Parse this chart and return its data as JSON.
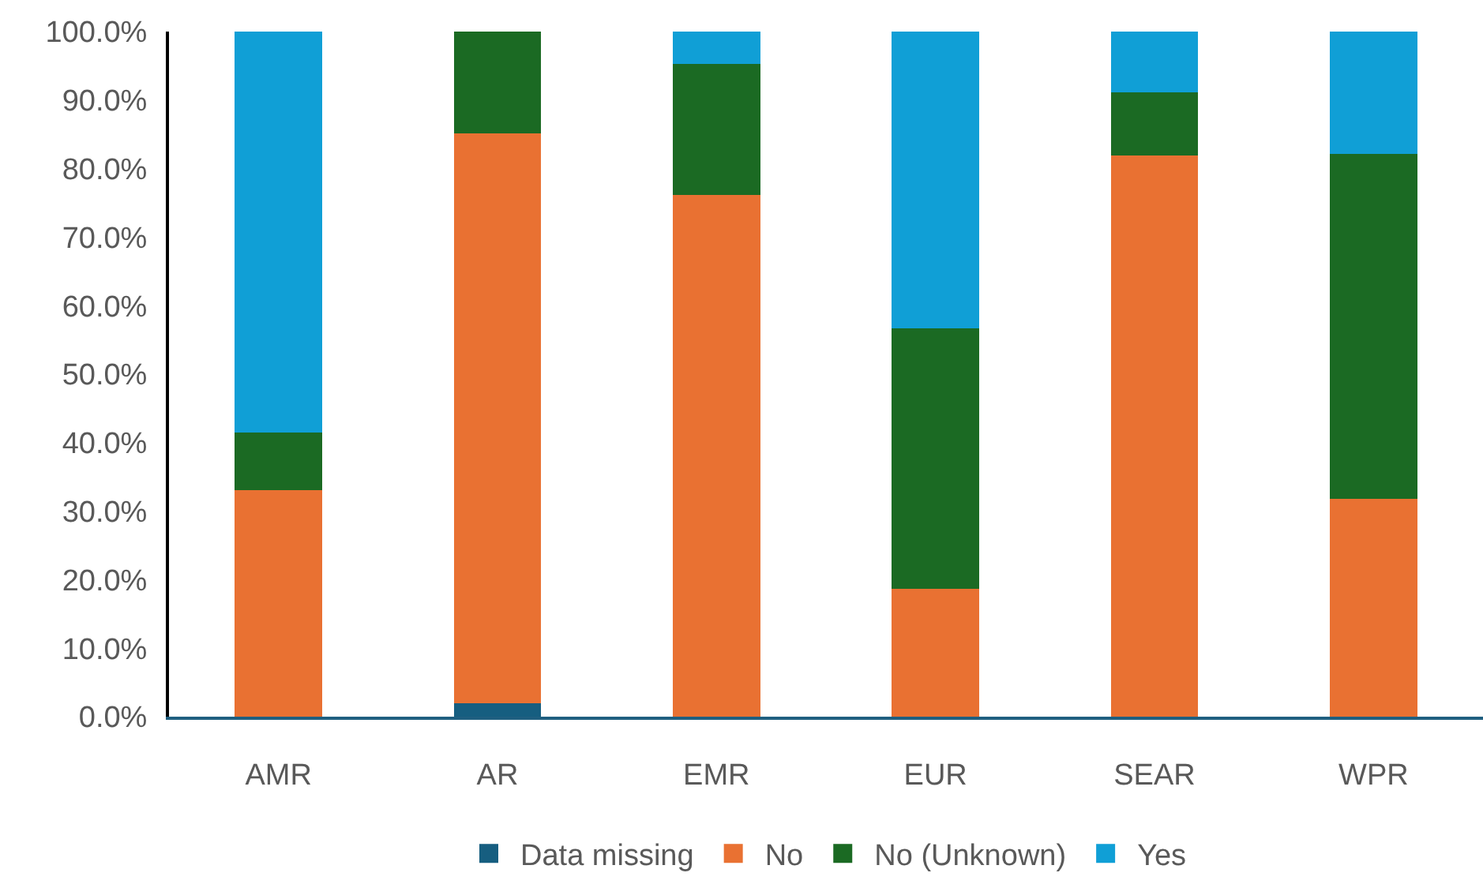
{
  "chart_data": {
    "type": "bar",
    "stacked": true,
    "categories": [
      "AMR",
      "AR",
      "EMR",
      "EUR",
      "SEAR",
      "WPR"
    ],
    "series": [
      {
        "name": "Data missing",
        "color": "#165e80",
        "values": [
          0,
          2.0,
          0,
          0,
          0,
          0
        ]
      },
      {
        "name": "No",
        "color": "#e97132",
        "values": [
          33.1,
          83.1,
          76.1,
          18.7,
          81.9,
          31.8
        ]
      },
      {
        "name": "No (Unknown)",
        "color": "#1b6a23",
        "values": [
          8.4,
          14.9,
          19.2,
          38.0,
          9.2,
          50.3
        ]
      },
      {
        "name": "Yes",
        "color": "#109fd6",
        "values": [
          58.5,
          0,
          4.7,
          43.3,
          8.9,
          17.9
        ]
      }
    ],
    "ylim": [
      0,
      100
    ],
    "yticks": [
      {
        "value": 0,
        "label": "0.0%"
      },
      {
        "value": 10,
        "label": "10.0%"
      },
      {
        "value": 20,
        "label": "20.0%"
      },
      {
        "value": 30,
        "label": "30.0%"
      },
      {
        "value": 40,
        "label": "40.0%"
      },
      {
        "value": 50,
        "label": "50.0%"
      },
      {
        "value": 60,
        "label": "60.0%"
      },
      {
        "value": 70,
        "label": "70.0%"
      },
      {
        "value": 80,
        "label": "80.0%"
      },
      {
        "value": 90,
        "label": "90.0%"
      },
      {
        "value": 100,
        "label": "100.0%"
      }
    ],
    "grid": false,
    "legend": "bottom"
  }
}
